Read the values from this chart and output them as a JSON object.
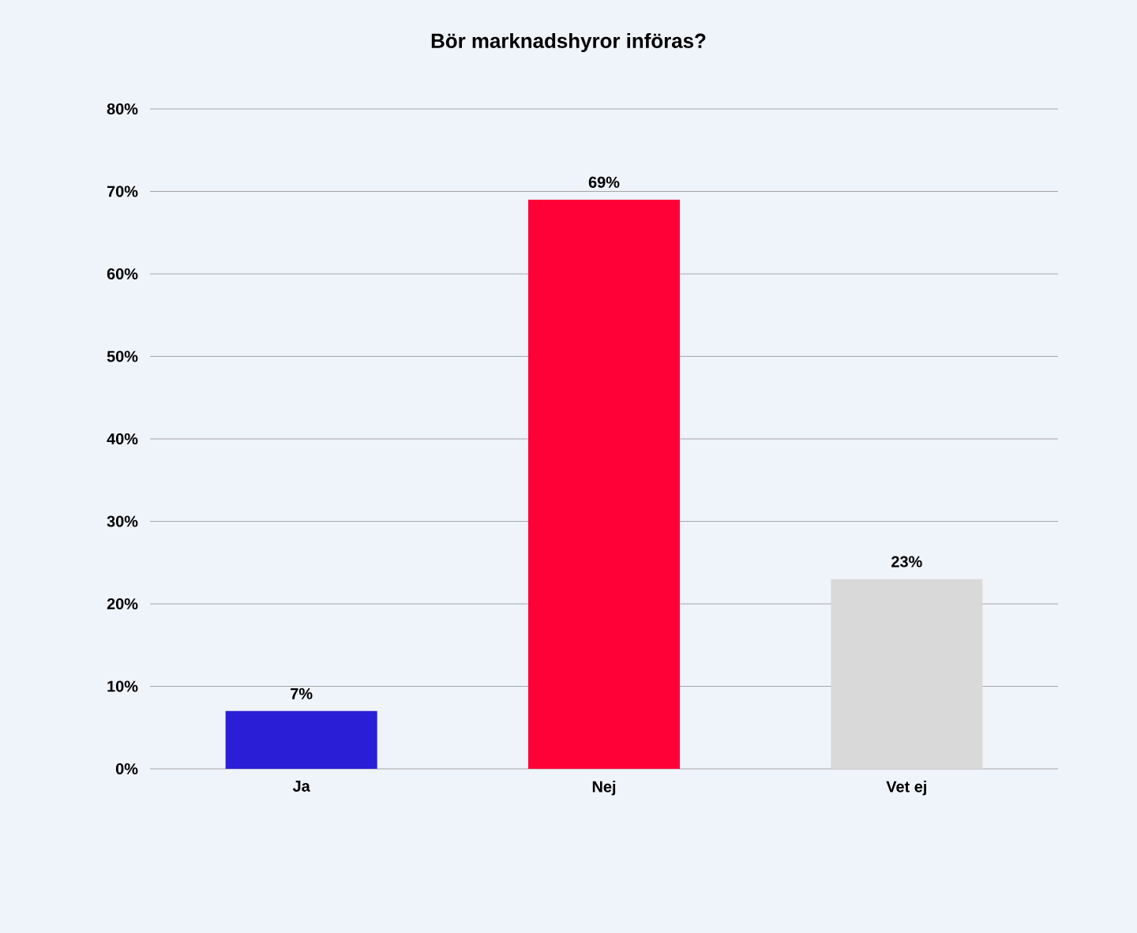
{
  "chart_data": {
    "type": "bar",
    "title": "Bör marknadshyror införas?",
    "categories": [
      "Ja",
      "Nej",
      "Vet ej"
    ],
    "values": [
      7,
      69,
      23
    ],
    "colors": [
      "#2a1fd6",
      "#ff0037",
      "#d9d9d9"
    ],
    "value_labels": [
      "7%",
      "69%",
      "23%"
    ],
    "ylim": [
      0,
      80
    ],
    "yticks": [
      {
        "value": 0,
        "label": "0%"
      },
      {
        "value": 10,
        "label": "10%"
      },
      {
        "value": 20,
        "label": "20%"
      },
      {
        "value": 30,
        "label": "30%"
      },
      {
        "value": 40,
        "label": "40%"
      },
      {
        "value": 50,
        "label": "50%"
      },
      {
        "value": 60,
        "label": "60%"
      },
      {
        "value": 70,
        "label": "70%"
      },
      {
        "value": 80,
        "label": "80%"
      }
    ],
    "grid": "y"
  }
}
